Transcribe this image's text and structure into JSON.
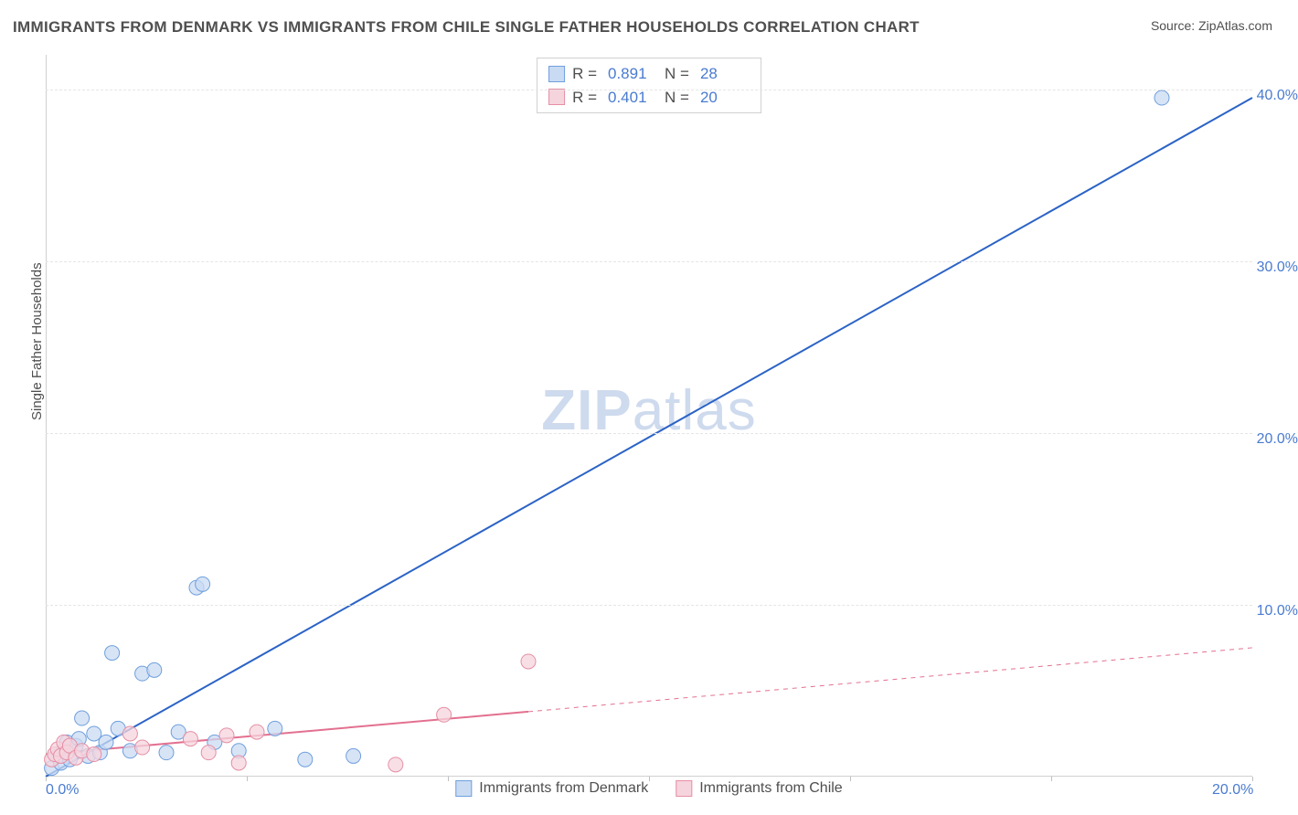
{
  "title": "IMMIGRANTS FROM DENMARK VS IMMIGRANTS FROM CHILE SINGLE FATHER HOUSEHOLDS CORRELATION CHART",
  "source": "Source: ZipAtlas.com",
  "watermark": "ZIPatlas",
  "y_axis_label": "Single Father Households",
  "chart": {
    "type": "scatter-correlation",
    "xlim": [
      0,
      20
    ],
    "ylim": [
      0,
      42
    ],
    "y_ticks": [
      10,
      20,
      30,
      40
    ],
    "y_tick_labels": [
      "10.0%",
      "20.0%",
      "30.0%",
      "40.0%"
    ],
    "x_ticks": [
      0,
      20
    ],
    "x_tick_labels": [
      "0.0%",
      "20.0%"
    ],
    "x_tick_marks": [
      0,
      3.33,
      6.67,
      10,
      13.33,
      16.67,
      20
    ],
    "grid_color": "#e5e5e5",
    "axis_color": "#d0d0d0",
    "background_color": "#ffffff",
    "series": [
      {
        "name": "Immigrants from Denmark",
        "color_fill": "#c9dbf3",
        "color_stroke": "#6f9fdd",
        "legend_swatch_fill": "#c9dbf3",
        "legend_swatch_stroke": "#6f9fdd",
        "marker_r": 8,
        "r_value": "0.891",
        "n_value": "28",
        "trend": {
          "x1": 0,
          "y1": 0,
          "x2": 20,
          "y2": 39.5,
          "solid_until_x": 20,
          "color": "#2b63c6",
          "width": 2
        },
        "points": [
          [
            0.1,
            0.5
          ],
          [
            0.2,
            1.2
          ],
          [
            0.25,
            0.8
          ],
          [
            0.3,
            1.5
          ],
          [
            0.35,
            2.0
          ],
          [
            0.4,
            1.0
          ],
          [
            0.5,
            1.8
          ],
          [
            0.55,
            2.2
          ],
          [
            0.6,
            3.4
          ],
          [
            0.7,
            1.2
          ],
          [
            0.8,
            2.5
          ],
          [
            0.9,
            1.4
          ],
          [
            1.0,
            2.0
          ],
          [
            1.1,
            7.2
          ],
          [
            1.2,
            2.8
          ],
          [
            1.4,
            1.5
          ],
          [
            1.6,
            6.0
          ],
          [
            1.8,
            6.2
          ],
          [
            2.0,
            1.4
          ],
          [
            2.2,
            2.6
          ],
          [
            2.5,
            11.0
          ],
          [
            2.6,
            11.2
          ],
          [
            2.8,
            2.0
          ],
          [
            3.2,
            1.5
          ],
          [
            3.8,
            2.8
          ],
          [
            4.3,
            1.0
          ],
          [
            5.1,
            1.2
          ],
          [
            18.5,
            39.5
          ]
        ]
      },
      {
        "name": "Immigrants from Chile",
        "color_fill": "#f6d4dd",
        "color_stroke": "#e58fa5",
        "legend_swatch_fill": "#f6d4dd",
        "legend_swatch_stroke": "#e58fa5",
        "marker_r": 8,
        "r_value": "0.401",
        "n_value": "20",
        "trend": {
          "x1": 0,
          "y1": 1.3,
          "x2": 20,
          "y2": 7.5,
          "solid_until_x": 8,
          "color": "#e37090",
          "width": 2
        },
        "points": [
          [
            0.1,
            1.0
          ],
          [
            0.15,
            1.3
          ],
          [
            0.2,
            1.6
          ],
          [
            0.25,
            1.2
          ],
          [
            0.3,
            2.0
          ],
          [
            0.35,
            1.4
          ],
          [
            0.4,
            1.8
          ],
          [
            0.5,
            1.1
          ],
          [
            0.6,
            1.5
          ],
          [
            0.8,
            1.3
          ],
          [
            1.4,
            2.5
          ],
          [
            1.6,
            1.7
          ],
          [
            2.4,
            2.2
          ],
          [
            2.7,
            1.4
          ],
          [
            3.0,
            2.4
          ],
          [
            3.2,
            0.8
          ],
          [
            3.5,
            2.6
          ],
          [
            5.8,
            0.7
          ],
          [
            6.6,
            3.6
          ],
          [
            8.0,
            6.7
          ]
        ]
      }
    ]
  },
  "legend_bottom": [
    {
      "label": "Immigrants from Denmark",
      "fill": "#c9dbf3",
      "stroke": "#6f9fdd"
    },
    {
      "label": "Immigrants from Chile",
      "fill": "#f6d4dd",
      "stroke": "#e58fa5"
    }
  ]
}
